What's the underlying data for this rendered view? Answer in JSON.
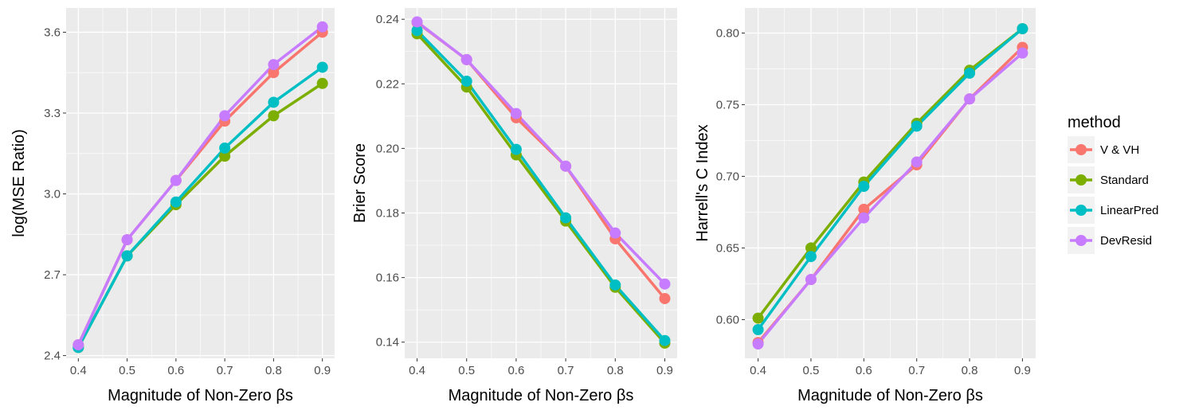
{
  "colors": {
    "panel_bg": "#ebebeb",
    "grid": "#ffffff",
    "V & VH": "#f8766d",
    "Standard": "#7cae00",
    "LinearPred": "#00bfc4",
    "DevResid": "#c77cff"
  },
  "legend": {
    "title": "method",
    "entries": [
      "V & VH",
      "Standard",
      "LinearPred",
      "DevResid"
    ]
  },
  "chart_data": [
    {
      "type": "line",
      "xlabel": "Magnitude of Non-Zero βs",
      "ylabel": "log(MSE Ratio)",
      "x": [
        0.4,
        0.5,
        0.6,
        0.7,
        0.8,
        0.9
      ],
      "xticks": [
        "0.4",
        "0.5",
        "0.6",
        "0.7",
        "0.8",
        "0.9"
      ],
      "xlim": [
        0.375,
        0.925
      ],
      "yticks": [
        2.4,
        2.7,
        3.0,
        3.3,
        3.6
      ],
      "ytick_labels": [
        "2.4",
        "2.7",
        "3.0",
        "3.3",
        "3.6"
      ],
      "ylim": [
        2.39,
        3.69
      ],
      "grid": true,
      "series": [
        {
          "name": "V & VH",
          "values": [
            2.44,
            2.83,
            3.05,
            3.27,
            3.45,
            3.6
          ]
        },
        {
          "name": "Standard",
          "values": [
            2.43,
            2.77,
            2.96,
            3.14,
            3.29,
            3.41
          ]
        },
        {
          "name": "LinearPred",
          "values": [
            2.43,
            2.77,
            2.97,
            3.17,
            3.34,
            3.47
          ]
        },
        {
          "name": "DevResid",
          "values": [
            2.44,
            2.83,
            3.05,
            3.29,
            3.48,
            3.62
          ]
        }
      ]
    },
    {
      "type": "line",
      "xlabel": "Magnitude of Non-Zero βs",
      "ylabel": "Brier Score",
      "x": [
        0.4,
        0.5,
        0.6,
        0.7,
        0.8,
        0.9
      ],
      "xticks": [
        "0.4",
        "0.5",
        "0.6",
        "0.7",
        "0.8",
        "0.9"
      ],
      "xlim": [
        0.375,
        0.925
      ],
      "yticks": [
        0.14,
        0.16,
        0.18,
        0.2,
        0.22,
        0.24
      ],
      "ytick_labels": [
        "0.14",
        "0.16",
        "0.18",
        "0.20",
        "0.22",
        "0.24"
      ],
      "ylim": [
        0.135,
        0.2435
      ],
      "grid": true,
      "series": [
        {
          "name": "V & VH",
          "values": [
            0.239,
            0.2275,
            0.2095,
            0.1945,
            0.172,
            0.1535
          ]
        },
        {
          "name": "Standard",
          "values": [
            0.2355,
            0.219,
            0.198,
            0.1775,
            0.157,
            0.1397
          ]
        },
        {
          "name": "LinearPred",
          "values": [
            0.2365,
            0.2208,
            0.1997,
            0.1785,
            0.1577,
            0.1405
          ]
        },
        {
          "name": "DevResid",
          "values": [
            0.2392,
            0.2275,
            0.2108,
            0.1945,
            0.1738,
            0.158
          ]
        }
      ]
    },
    {
      "type": "line",
      "xlabel": "Magnitude of Non-Zero βs",
      "ylabel": "Harrell's C Index",
      "x": [
        0.4,
        0.5,
        0.6,
        0.7,
        0.8,
        0.9
      ],
      "xticks": [
        "0.4",
        "0.5",
        "0.6",
        "0.7",
        "0.8",
        "0.9"
      ],
      "xlim": [
        0.375,
        0.925
      ],
      "yticks": [
        0.6,
        0.65,
        0.7,
        0.75,
        0.8
      ],
      "ytick_labels": [
        "0.60",
        "0.65",
        "0.70",
        "0.75",
        "0.80"
      ],
      "ylim": [
        0.573,
        0.8175
      ],
      "grid": true,
      "series": [
        {
          "name": "V & VH",
          "values": [
            0.584,
            0.628,
            0.677,
            0.708,
            0.754,
            0.79
          ]
        },
        {
          "name": "Standard",
          "values": [
            0.601,
            0.65,
            0.696,
            0.737,
            0.774,
            0.803
          ]
        },
        {
          "name": "LinearPred",
          "values": [
            0.593,
            0.644,
            0.693,
            0.735,
            0.772,
            0.803
          ]
        },
        {
          "name": "DevResid",
          "values": [
            0.583,
            0.628,
            0.671,
            0.71,
            0.754,
            0.786
          ]
        }
      ]
    }
  ]
}
